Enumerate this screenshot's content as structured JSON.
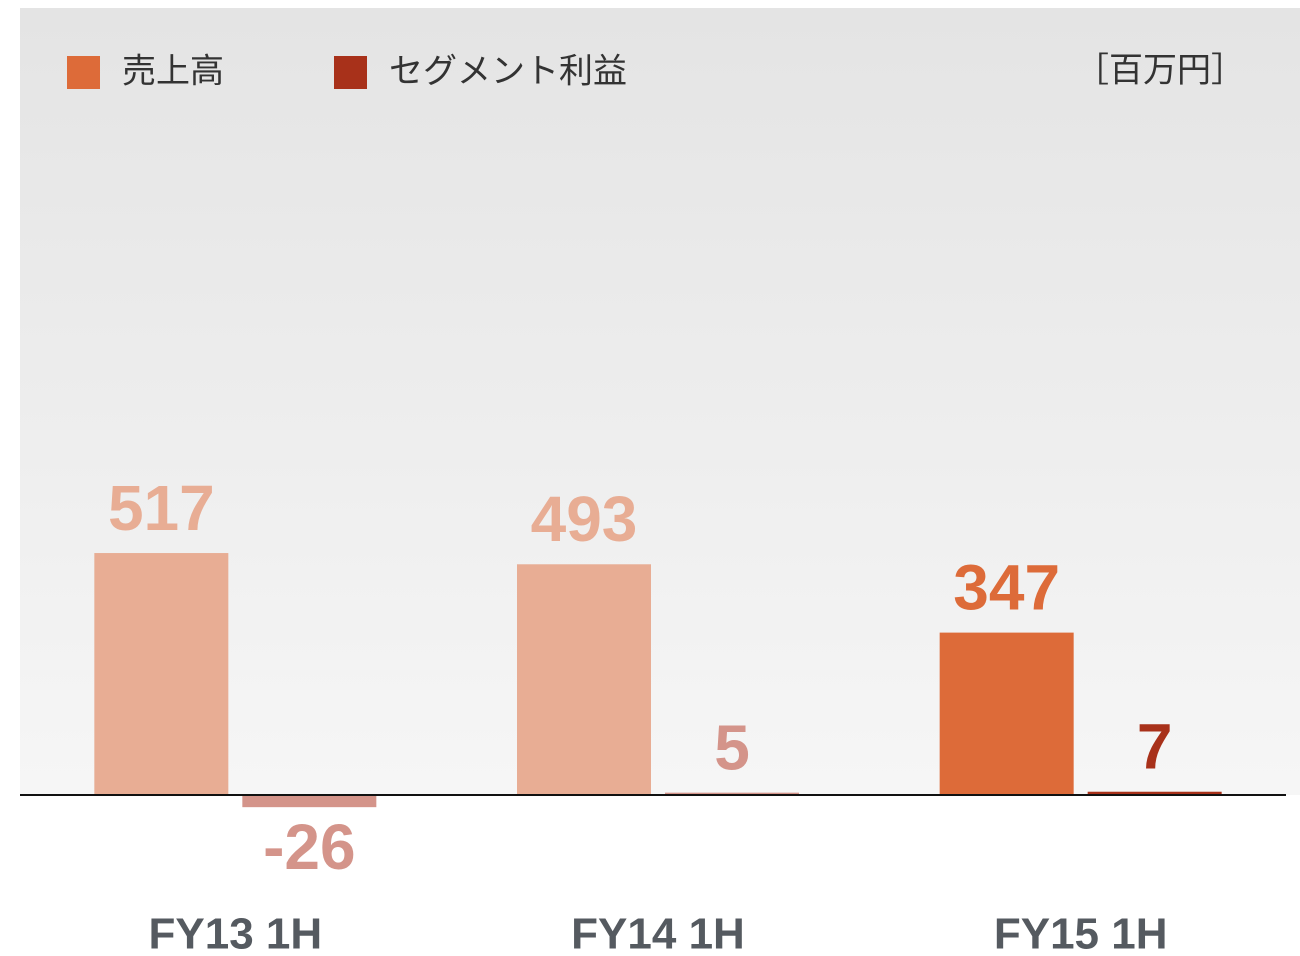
{
  "chart_data": {
    "type": "bar",
    "unit_label": "［百万円］",
    "categories": [
      "FY13 1H",
      "FY14 1H",
      "FY15 1H"
    ],
    "series": [
      {
        "name": "売上高",
        "color": "#dd6b39",
        "colors": [
          "#e8ad94",
          "#e8ad94",
          "#dd6b39"
        ],
        "values": [
          517,
          493,
          347
        ]
      },
      {
        "name": "セグメント利益",
        "color": "#a8311a",
        "colors": [
          "#d4948a",
          "#d4948a",
          "#a8311a"
        ],
        "values": [
          -26,
          5,
          7
        ]
      }
    ]
  }
}
